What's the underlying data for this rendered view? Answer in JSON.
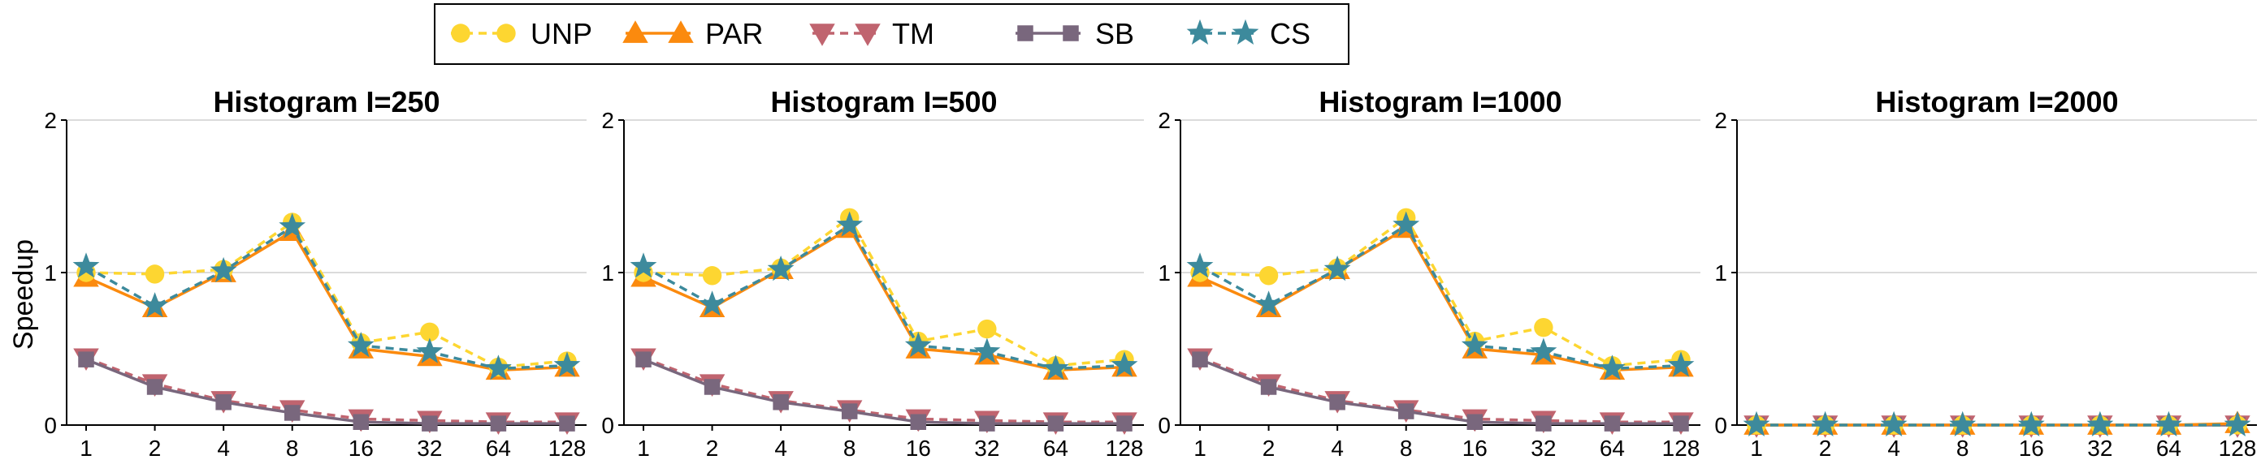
{
  "chart_data": [
    {
      "type": "line",
      "title": "Histogram I=250",
      "xlabel": "",
      "ylabel": "Speedup",
      "categories": [
        "1",
        "2",
        "4",
        "8",
        "16",
        "32",
        "64",
        "128"
      ],
      "ylim": [
        0,
        2
      ],
      "yticks": [
        "0",
        "1",
        "2"
      ],
      "grid": true,
      "series": [
        {
          "name": "UNP",
          "values": [
            1.0,
            0.99,
            1.02,
            1.33,
            0.54,
            0.61,
            0.38,
            0.42
          ]
        },
        {
          "name": "PAR",
          "values": [
            0.97,
            0.77,
            1.0,
            1.27,
            0.5,
            0.45,
            0.36,
            0.38
          ]
        },
        {
          "name": "TM",
          "values": [
            0.44,
            0.27,
            0.16,
            0.1,
            0.04,
            0.03,
            0.02,
            0.02
          ]
        },
        {
          "name": "SB",
          "values": [
            0.43,
            0.25,
            0.15,
            0.08,
            0.02,
            0.01,
            0.01,
            0.01
          ]
        },
        {
          "name": "CS",
          "values": [
            1.04,
            0.78,
            1.01,
            1.3,
            0.52,
            0.48,
            0.37,
            0.39
          ]
        }
      ]
    },
    {
      "type": "line",
      "title": "Histogram I=500",
      "xlabel": "",
      "ylabel": "",
      "categories": [
        "1",
        "2",
        "4",
        "8",
        "16",
        "32",
        "64",
        "128"
      ],
      "ylim": [
        0,
        2
      ],
      "yticks": [
        "0",
        "1",
        "2"
      ],
      "grid": true,
      "series": [
        {
          "name": "UNP",
          "values": [
            1.0,
            0.98,
            1.03,
            1.36,
            0.55,
            0.63,
            0.39,
            0.43
          ]
        },
        {
          "name": "PAR",
          "values": [
            0.97,
            0.77,
            1.02,
            1.29,
            0.5,
            0.46,
            0.36,
            0.38
          ]
        },
        {
          "name": "TM",
          "values": [
            0.44,
            0.27,
            0.16,
            0.1,
            0.04,
            0.03,
            0.02,
            0.02
          ]
        },
        {
          "name": "SB",
          "values": [
            0.43,
            0.25,
            0.15,
            0.09,
            0.02,
            0.01,
            0.01,
            0.01
          ]
        },
        {
          "name": "CS",
          "values": [
            1.04,
            0.79,
            1.02,
            1.31,
            0.52,
            0.48,
            0.37,
            0.39
          ]
        }
      ]
    },
    {
      "type": "line",
      "title": "Histogram I=1000",
      "xlabel": "",
      "ylabel": "",
      "categories": [
        "1",
        "2",
        "4",
        "8",
        "16",
        "32",
        "64",
        "128"
      ],
      "ylim": [
        0,
        2
      ],
      "yticks": [
        "0",
        "1",
        "2"
      ],
      "grid": true,
      "series": [
        {
          "name": "UNP",
          "values": [
            1.0,
            0.98,
            1.03,
            1.36,
            0.55,
            0.64,
            0.39,
            0.43
          ]
        },
        {
          "name": "PAR",
          "values": [
            0.97,
            0.77,
            1.02,
            1.29,
            0.5,
            0.46,
            0.36,
            0.38
          ]
        },
        {
          "name": "TM",
          "values": [
            0.44,
            0.27,
            0.16,
            0.1,
            0.04,
            0.03,
            0.02,
            0.02
          ]
        },
        {
          "name": "SB",
          "values": [
            0.43,
            0.25,
            0.15,
            0.09,
            0.02,
            0.01,
            0.01,
            0.01
          ]
        },
        {
          "name": "CS",
          "values": [
            1.04,
            0.79,
            1.02,
            1.31,
            0.52,
            0.48,
            0.37,
            0.39
          ]
        }
      ]
    },
    {
      "type": "line",
      "title": "Histogram I=2000",
      "xlabel": "",
      "ylabel": "",
      "categories": [
        "1",
        "2",
        "4",
        "8",
        "16",
        "32",
        "64",
        "128"
      ],
      "ylim": [
        0,
        2
      ],
      "yticks": [
        "0",
        "1",
        "2"
      ],
      "grid": true,
      "series": [
        {
          "name": "UNP",
          "values": [
            0.0,
            0.0,
            0.0,
            0.0,
            0.0,
            0.0,
            0.0,
            0.0
          ]
        },
        {
          "name": "PAR",
          "values": [
            0.0,
            0.0,
            0.0,
            0.0,
            0.0,
            0.0,
            0.0,
            0.01
          ]
        },
        {
          "name": "TM",
          "values": [
            0.0,
            0.0,
            0.0,
            0.0,
            0.0,
            0.0,
            0.0,
            0.0
          ]
        },
        {
          "name": "SB",
          "values": [
            0.0,
            0.0,
            0.0,
            0.0,
            0.0,
            0.0,
            0.0,
            0.0
          ]
        },
        {
          "name": "CS",
          "values": [
            0.0,
            0.0,
            0.0,
            0.0,
            0.0,
            0.0,
            0.0,
            0.0
          ]
        }
      ]
    }
  ],
  "legend": {
    "placement": "top-center",
    "entries": [
      {
        "label": "UNP",
        "color": "#fdd631",
        "marker": "circle",
        "dash": "dashed"
      },
      {
        "label": "PAR",
        "color": "#fb8a0e",
        "marker": "triangle-up",
        "dash": "solid"
      },
      {
        "label": "TM",
        "color": "#c0646f",
        "marker": "triangle-down",
        "dash": "dashed"
      },
      {
        "label": "SB",
        "color": "#79677d",
        "marker": "square",
        "dash": "solid"
      },
      {
        "label": "CS",
        "color": "#3d8a9c",
        "marker": "star",
        "dash": "dashed"
      }
    ]
  }
}
